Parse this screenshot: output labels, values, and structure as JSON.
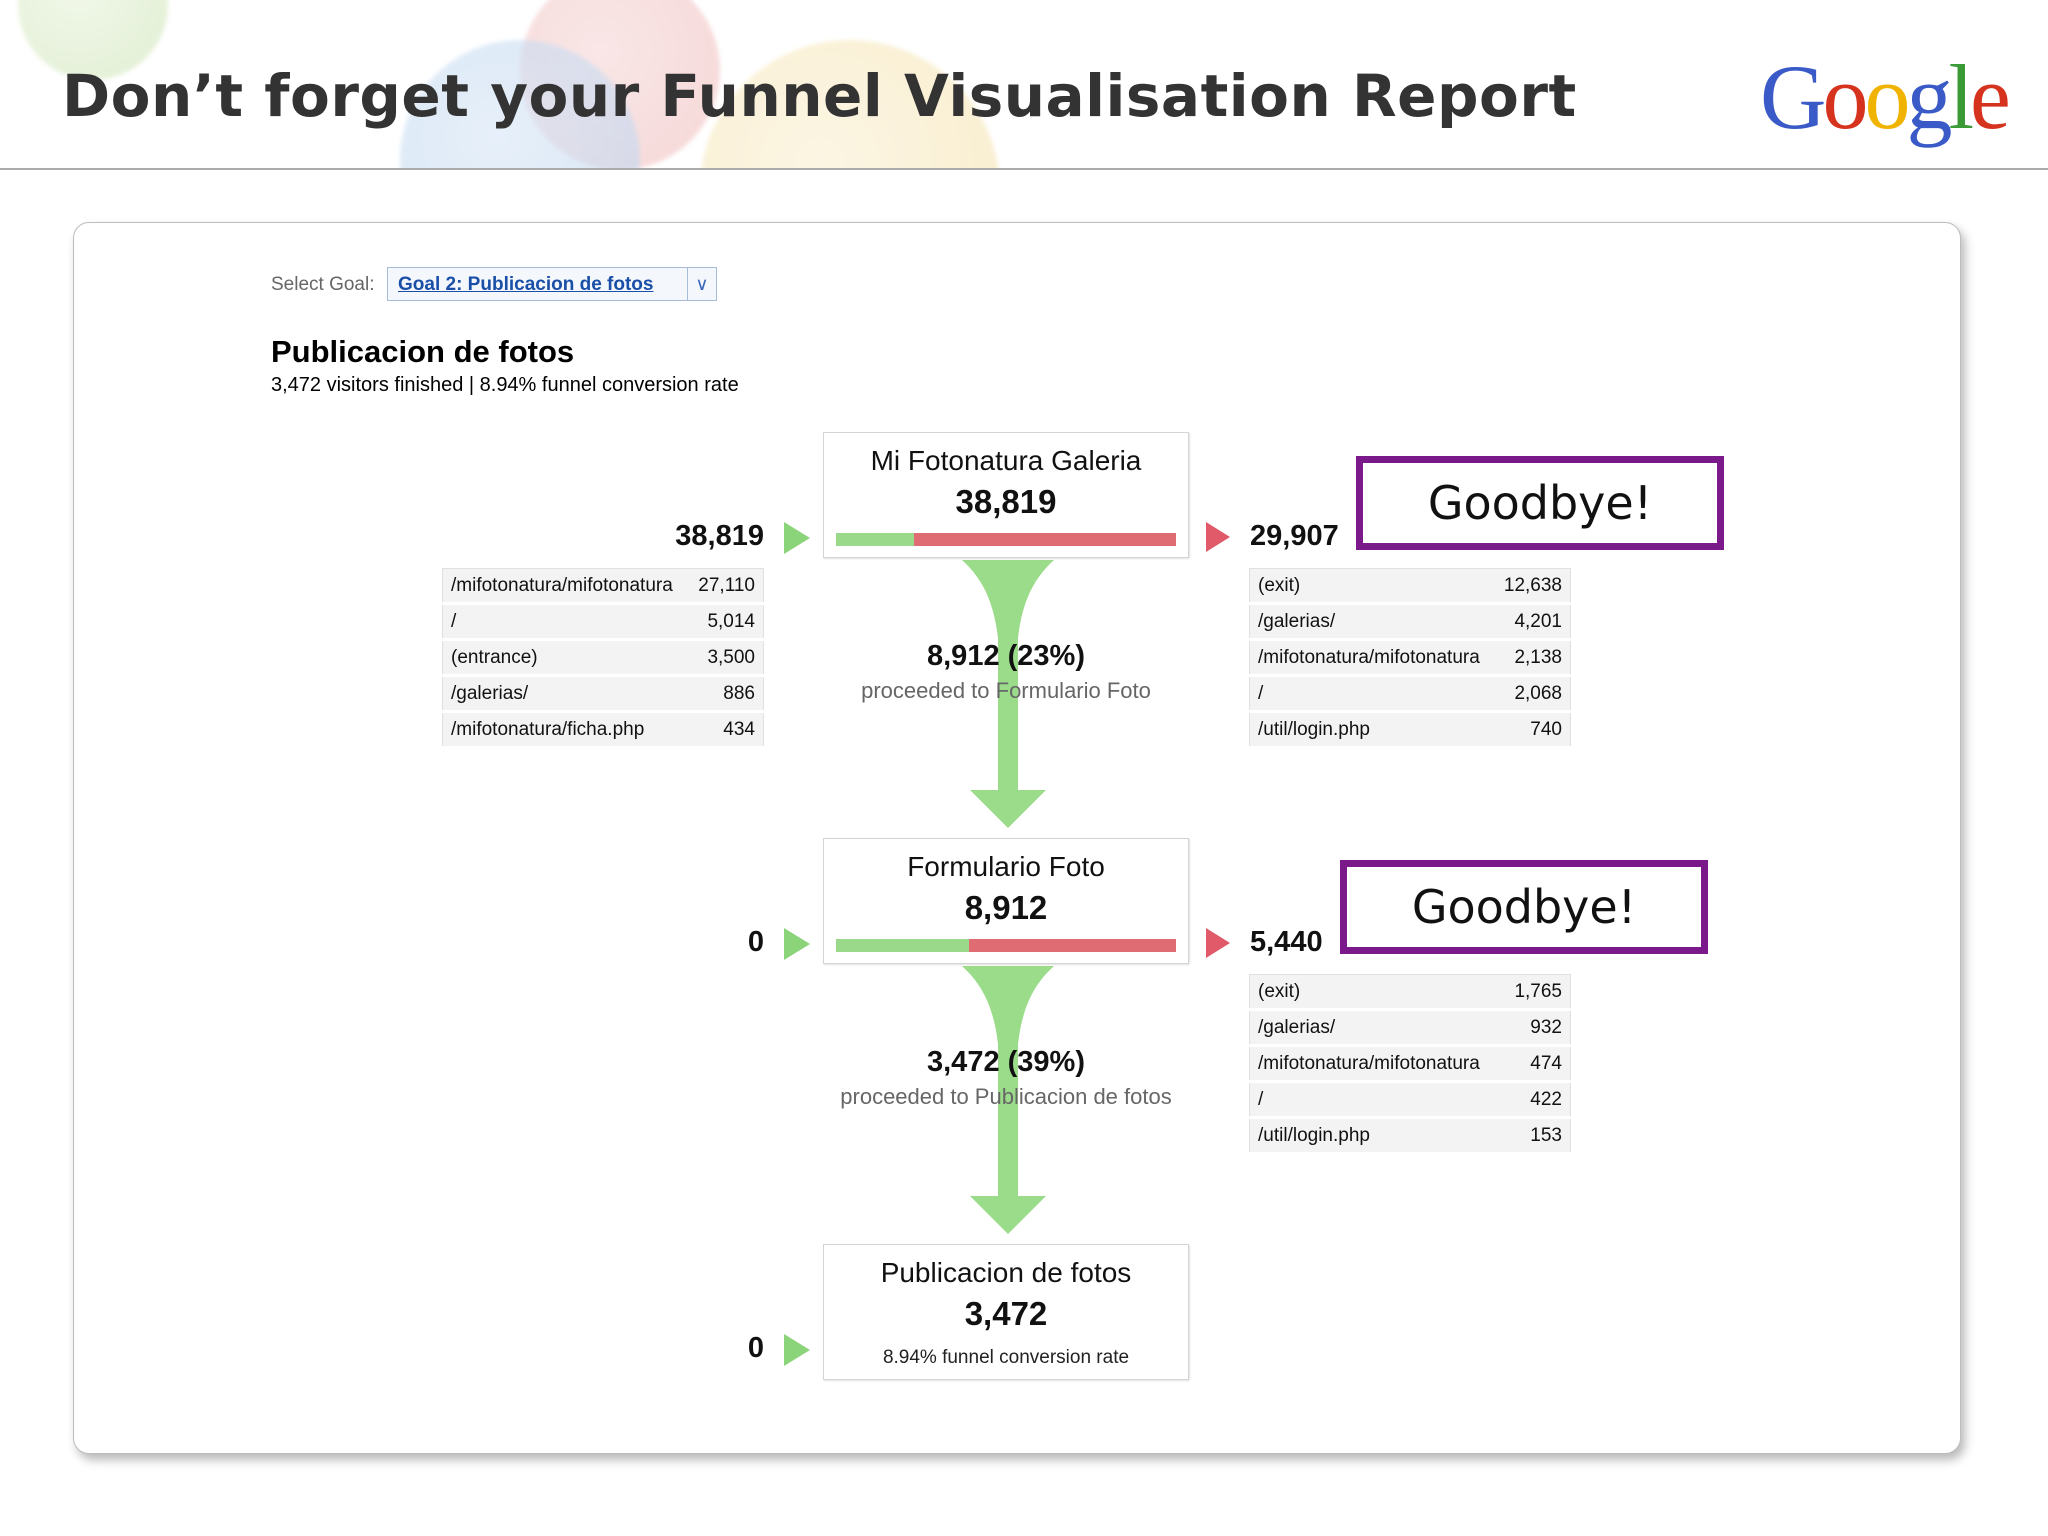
{
  "slide": {
    "title": "Don’t forget your Funnel Visualisation Report"
  },
  "logo": {
    "letters": [
      "G",
      "o",
      "o",
      "g",
      "l",
      "e"
    ],
    "colors": [
      "#3a5bc7",
      "#d6331f",
      "#f0b400",
      "#3a5bc7",
      "#3a9a36",
      "#d6331f"
    ]
  },
  "colors": {
    "exit_red": "#de6c72",
    "progress_green": "#9ad88a",
    "callout_purple": "#7a1a8a"
  },
  "report": {
    "select_goal": {
      "label": "Select Goal:",
      "value": "Goal 2: Publicacion de fotos",
      "icon": "double-chevron-down-icon"
    },
    "goal_name": "Publicacion de fotos",
    "summary": "3,472 visitors finished | 8.94% funnel conversion rate",
    "steps": [
      {
        "name": "Mi Fotonatura Galeria",
        "count": "38,819",
        "completion_fraction": 0.23,
        "entrances": "38,819",
        "exits": "29,907",
        "proceeded_value": "8,912 (23%)",
        "proceeded_text": "proceeded to Formulario Foto",
        "sources": [
          {
            "page": "/mifotonatura/mifotonatura",
            "value": "27,110"
          },
          {
            "page": "/",
            "value": "5,014"
          },
          {
            "page": "(entrance)",
            "value": "3,500"
          },
          {
            "page": "/galerias/",
            "value": "886"
          },
          {
            "page": "/mifotonatura/ficha.php",
            "value": "434"
          }
        ],
        "destinations": [
          {
            "page": "(exit)",
            "value": "12,638"
          },
          {
            "page": "/galerias/",
            "value": "4,201"
          },
          {
            "page": "/mifotonatura/mifotonatura",
            "value": "2,138"
          },
          {
            "page": "/",
            "value": "2,068"
          },
          {
            "page": "/util/login.php",
            "value": "740"
          }
        ],
        "callout": "Goodbye!"
      },
      {
        "name": "Formulario Foto",
        "count": "8,912",
        "completion_fraction": 0.39,
        "entrances": "0",
        "exits": "5,440",
        "proceeded_value": "3,472 (39%)",
        "proceeded_text": "proceeded to Publicacion de fotos",
        "destinations": [
          {
            "page": "(exit)",
            "value": "1,765"
          },
          {
            "page": "/galerias/",
            "value": "932"
          },
          {
            "page": "/mifotonatura/mifotonatura",
            "value": "474"
          },
          {
            "page": "/",
            "value": "422"
          },
          {
            "page": "/util/login.php",
            "value": "153"
          }
        ],
        "callout": "Goodbye!"
      },
      {
        "name": "Publicacion de fotos",
        "count": "3,472",
        "entrances": "0",
        "note": "8.94% funnel conversion rate"
      }
    ]
  }
}
